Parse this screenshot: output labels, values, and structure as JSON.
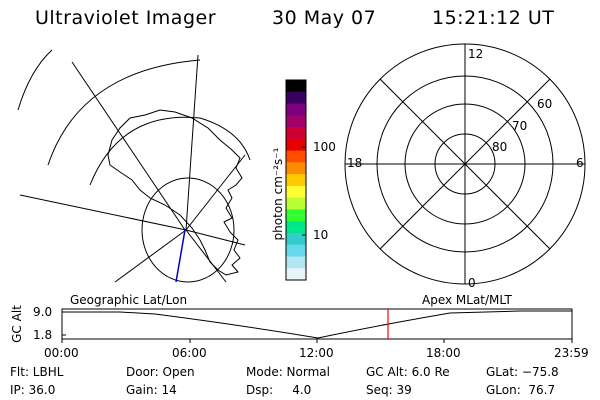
{
  "header": {
    "instrument": "Ultraviolet Imager",
    "date": "30 May 07",
    "time": "15:21:12 UT"
  },
  "colorbar": {
    "unit_label": "photon cm⁻²s⁻¹",
    "ticks": [
      "100",
      "10"
    ],
    "colors": [
      "#000000",
      "#3a0060",
      "#7a0080",
      "#a0006a",
      "#cc0033",
      "#e60000",
      "#ff4d00",
      "#ff8c00",
      "#ffc800",
      "#ffff33",
      "#b8ff33",
      "#33ff33",
      "#00e68c",
      "#33cccc",
      "#66d9ee",
      "#b3e6f2",
      "#e6f3f8"
    ]
  },
  "polar_plot": {
    "mlt_labels": {
      "top": "12",
      "left": "18",
      "right": "6",
      "bottom": "0"
    },
    "lat_labels": [
      "60",
      "70",
      "80"
    ]
  },
  "timeline": {
    "left_caption": "Geographic Lat/Lon",
    "right_caption": "Apex MLat/MLT",
    "axis_title": "GC Alt",
    "y_ticks": [
      "9.0",
      "1.8"
    ],
    "x_ticks": [
      "00:00",
      "06:00",
      "12:00",
      "18:00",
      "23:59"
    ],
    "marker_time": "15:21:12"
  },
  "info": {
    "row1": {
      "filter": "Flt: LBHL",
      "door": "Door: Open",
      "mode": "Mode: Normal",
      "gc_alt": "GC Alt: 6.0 Re",
      "glat": "GLat: −75.8"
    },
    "row2": {
      "ip": "IP: 36.0",
      "gain": "Gain: 14",
      "dsp": "Dsp:     4.0",
      "seq": "Seq: 39",
      "glon": "GLon:  76.7"
    }
  },
  "colors": {
    "marker": "#ff0000",
    "track": "#0000cc",
    "line": "#000000"
  }
}
